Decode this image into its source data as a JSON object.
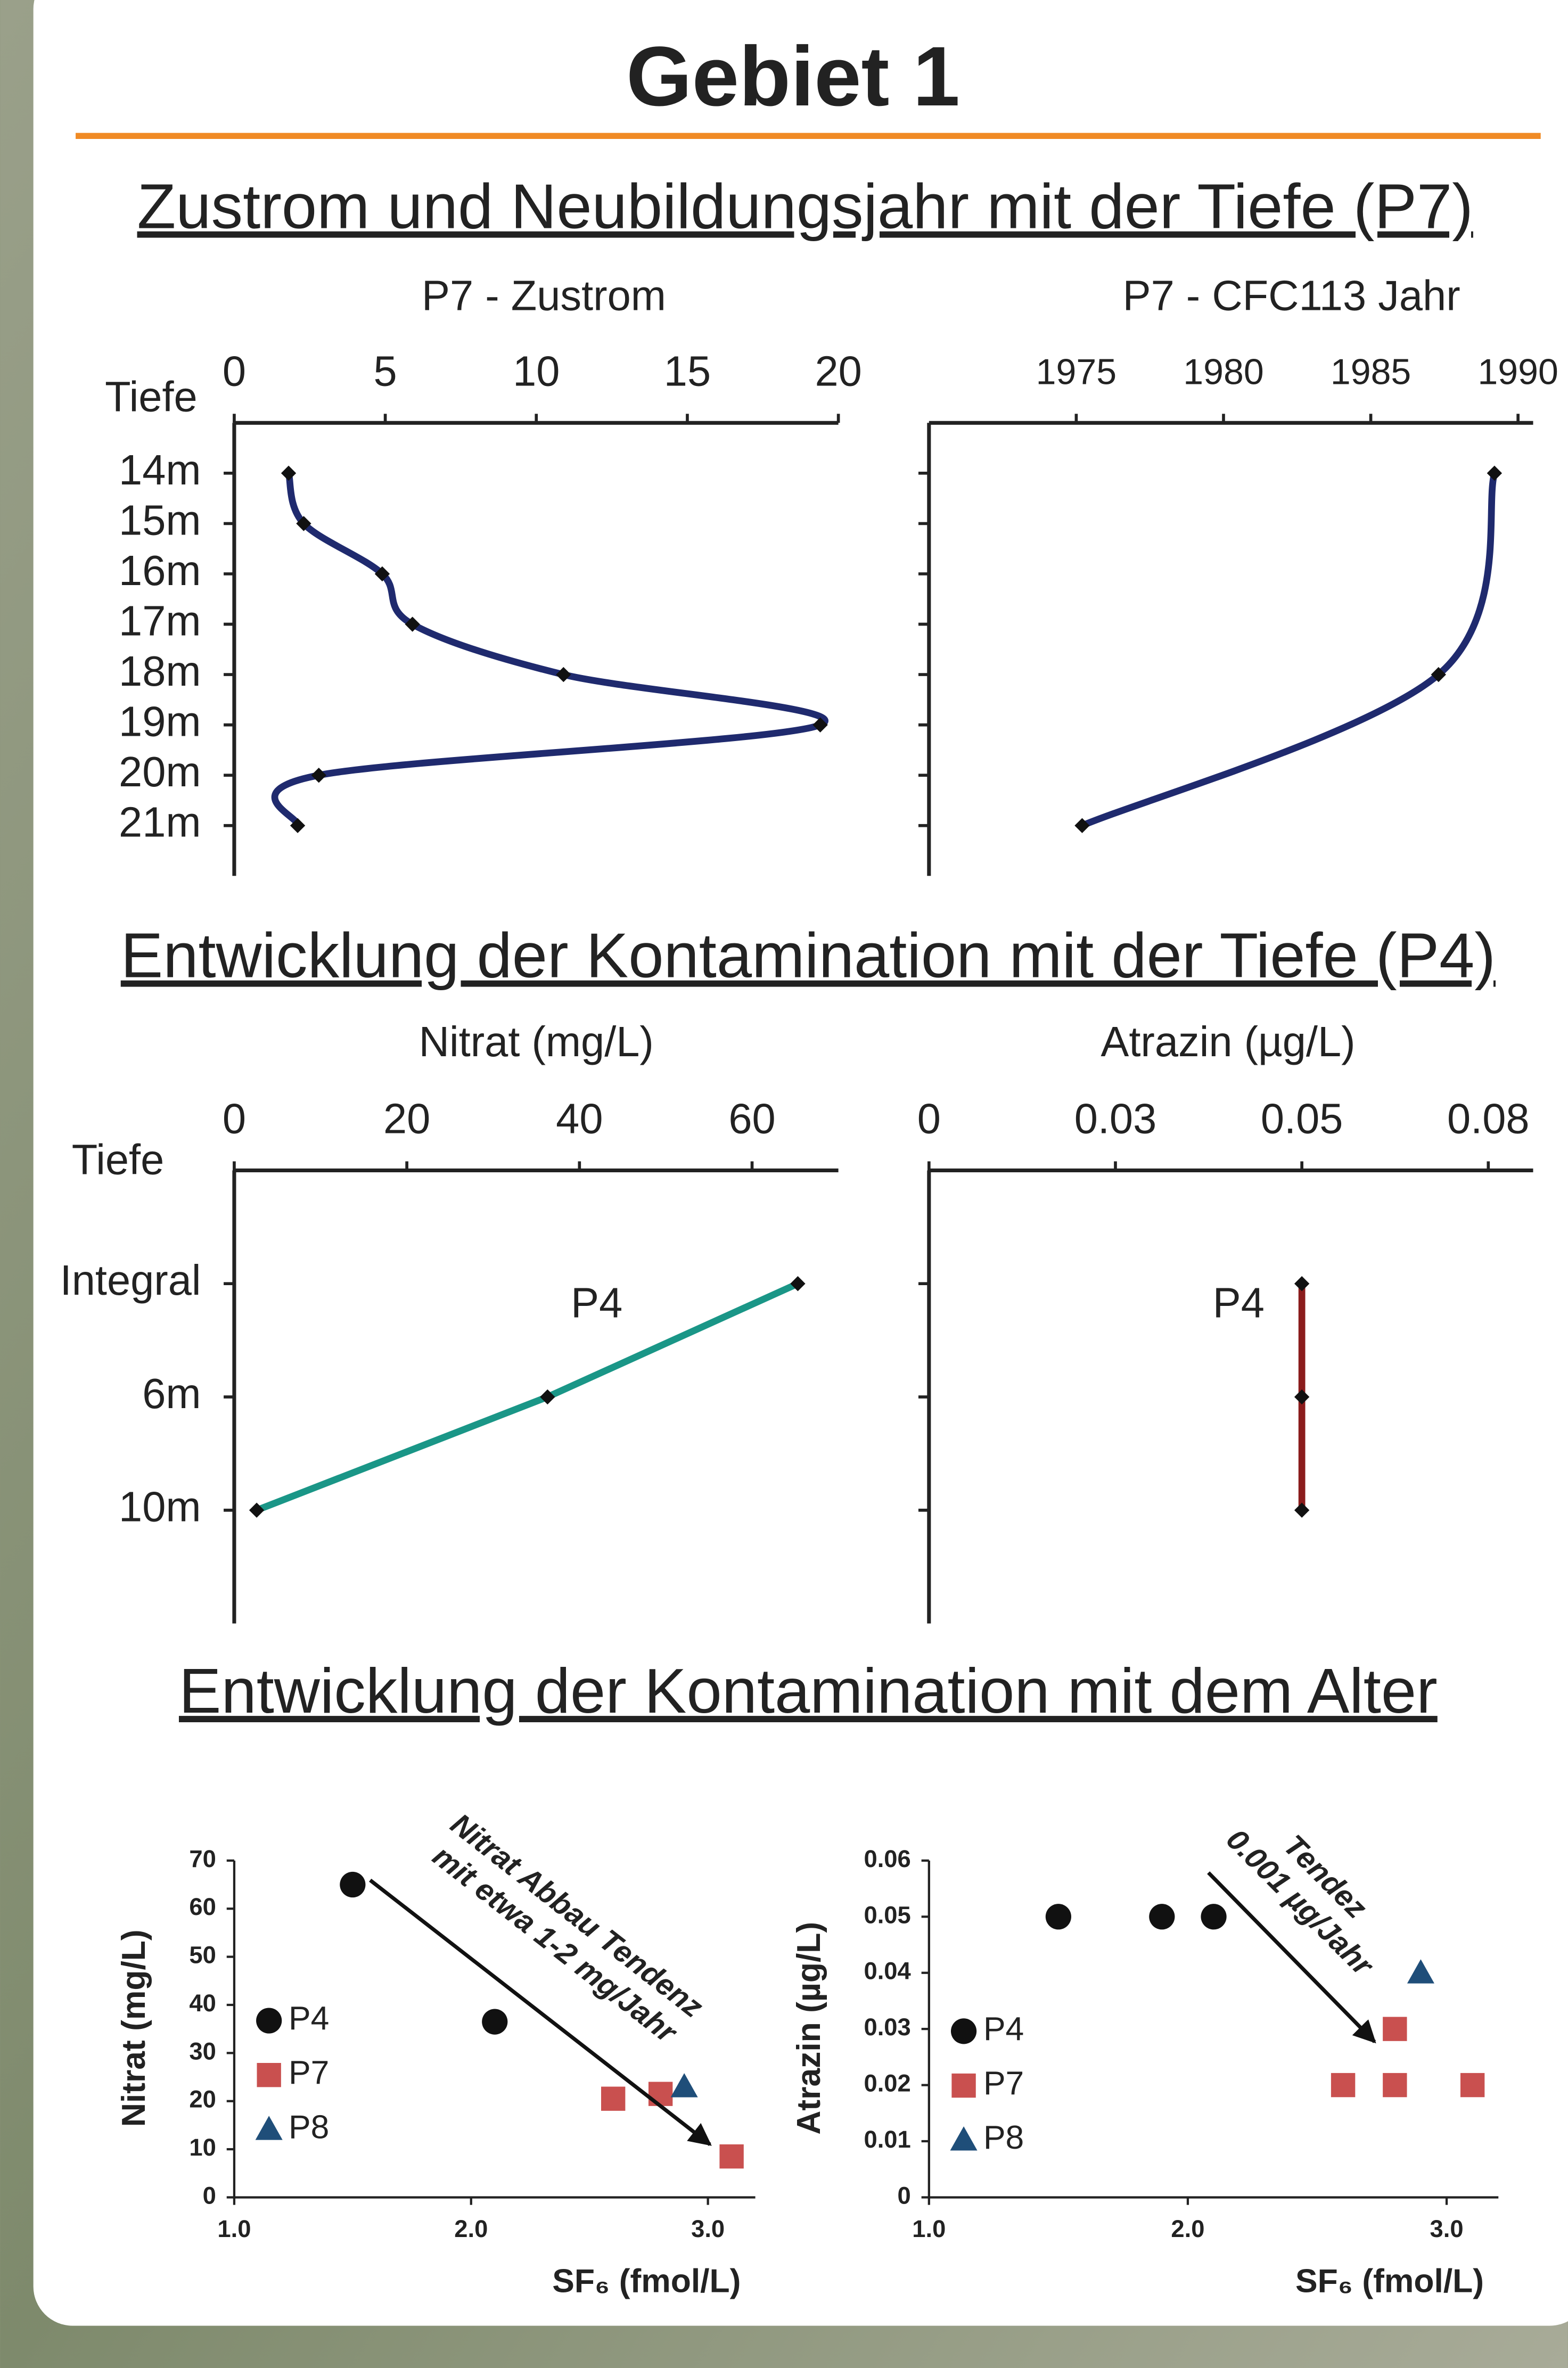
{
  "title": "Gebiet 1",
  "sections": [
    "Zustrom und Neubildungsjahr mit der Tiefe (P7)",
    "Entwicklung der Kontamination mit der Tiefe (P4)",
    "Entwicklung der Kontamination mit dem Alter"
  ],
  "chart_data": [
    {
      "type": "profile",
      "title": "P7 - Zustrom",
      "ylabel": "Tiefe",
      "categories": [
        "14m",
        "15m",
        "16m",
        "17m",
        "18m",
        "19m",
        "20m",
        "21m"
      ],
      "values": [
        1.8,
        2.3,
        4.9,
        5.9,
        10.9,
        19.4,
        2.8,
        2.1
      ],
      "color": "#1f2a6e",
      "smooth": true,
      "xlim": [
        0,
        20
      ],
      "xticks": [
        0,
        5,
        10,
        15,
        20
      ]
    },
    {
      "type": "profile",
      "title": "P7 - CFC113 Jahr",
      "categories": [
        null,
        null,
        null,
        null,
        null,
        null,
        null,
        null
      ],
      "values": [
        1989.2,
        null,
        null,
        null,
        1987.3,
        null,
        null,
        1975.2
      ],
      "color": "#1f2a6e",
      "smooth": true,
      "connect_gaps": true,
      "xlim": [
        1970,
        1990
      ],
      "xticks": [
        1975,
        1980,
        1985,
        1990
      ]
    },
    {
      "type": "profile",
      "title": "Nitrat (mg/L)",
      "ylabel": "Tiefe",
      "categories": [
        "Integral",
        "6m",
        "10m"
      ],
      "values": [
        65.3,
        36.3,
        2.6
      ],
      "color": "#1a9687",
      "smooth": false,
      "annotation": "P4",
      "xlim": [
        0,
        70
      ],
      "xticks": [
        0,
        20,
        40,
        60
      ]
    },
    {
      "type": "profile",
      "title": "Atrazin (µg/L)",
      "categories": [
        null,
        null,
        null
      ],
      "values": [
        0.05,
        0.05,
        0.05
      ],
      "color": "#8b1c1c",
      "smooth": false,
      "annotation": "P4",
      "xlim": [
        0,
        0.08
      ],
      "xticks": [
        0,
        {
          "value": 0.025,
          "label": "0.03"
        },
        0.05,
        {
          "value": 0.075,
          "label": "0.08"
        }
      ]
    },
    {
      "type": "scatter",
      "xlabel": "SF₆ (fmol/L)",
      "ylabel": "Nitrat (mg/L)",
      "xlim": [
        1,
        3.2
      ],
      "xticks": [
        {
          "value": 1,
          "label": "1.0"
        },
        {
          "value": 2,
          "label": "2.0"
        },
        {
          "value": 3,
          "label": "3.0"
        }
      ],
      "ylim": [
        0,
        70
      ],
      "yticks": [
        0,
        10,
        20,
        30,
        40,
        50,
        60,
        70
      ],
      "annotation": [
        "Nitrat Abbau Tendenz",
        "mit etwa 1-2 mg/Jahr"
      ],
      "series": [
        {
          "name": "P4",
          "color": "#111111",
          "marker": "circle",
          "x": [
            1.5,
            2.1
          ],
          "values": [
            65,
            36.5
          ]
        },
        {
          "name": "P7",
          "color": "#c9504f",
          "marker": "square",
          "x": [
            2.6,
            2.8,
            3.1
          ],
          "values": [
            20.5,
            21.5,
            8.5
          ]
        },
        {
          "name": "P8",
          "color": "#1f4e79",
          "marker": "triangle",
          "x": [
            2.9
          ],
          "values": [
            23
          ]
        }
      ]
    },
    {
      "type": "scatter",
      "xlabel": "SF₆ (fmol/L)",
      "ylabel": "Atrazin  (µg/L)",
      "xlim": [
        1,
        3.2
      ],
      "xticks": [
        {
          "value": 1,
          "label": "1.0"
        },
        {
          "value": 2,
          "label": "2.0"
        },
        {
          "value": 3,
          "label": "3.0"
        }
      ],
      "ylim": [
        0,
        0.06
      ],
      "yticks": [
        0,
        0.01,
        0.02,
        0.03,
        0.04,
        0.05,
        0.06
      ],
      "annotation": [
        "Tendez",
        "0.001 µg/Jahr"
      ],
      "series": [
        {
          "name": "P4",
          "color": "#111111",
          "marker": "circle",
          "x": [
            1.5,
            1.9,
            2.1
          ],
          "values": [
            0.05,
            0.05,
            0.05
          ]
        },
        {
          "name": "P7",
          "color": "#c9504f",
          "marker": "square",
          "x": [
            2.6,
            2.8,
            2.8,
            3.1
          ],
          "values": [
            0.02,
            0.03,
            0.02,
            0.02
          ]
        },
        {
          "name": "P8",
          "color": "#1f4e79",
          "marker": "triangle",
          "x": [
            2.9
          ],
          "values": [
            0.04
          ]
        }
      ]
    }
  ]
}
